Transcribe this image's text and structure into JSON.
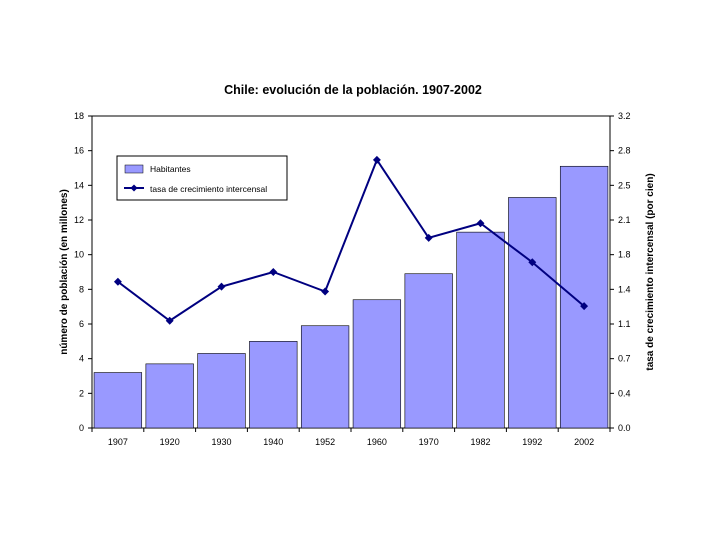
{
  "chart_data": {
    "type": "bar",
    "title": "Chile: evolución de la población. 1907-2002",
    "categories": [
      "1907",
      "1920",
      "1930",
      "1940",
      "1952",
      "1960",
      "1970",
      "1982",
      "1992",
      "2002"
    ],
    "series": [
      {
        "name": "Habitantes",
        "type": "bar",
        "axis": "left",
        "color": "#9999ff",
        "values": [
          3.2,
          3.7,
          4.3,
          5.0,
          5.9,
          7.4,
          8.9,
          11.3,
          13.3,
          15.1
        ]
      },
      {
        "name": "tasa de crecimiento intercensal",
        "type": "line",
        "axis": "right",
        "color": "#000080",
        "values": [
          1.5,
          1.1,
          1.45,
          1.6,
          1.4,
          2.75,
          1.95,
          2.1,
          1.7,
          1.25
        ]
      }
    ],
    "ylabel_left": "número de población (en millones)",
    "ylabel_right": "tasa de crecimiento intercensal (por cien)",
    "ylim_left": [
      0,
      18
    ],
    "yticks_left": [
      "0",
      "2",
      "4",
      "6",
      "8",
      "10",
      "12",
      "14",
      "16",
      "18"
    ],
    "ylim_right": [
      0,
      3.2
    ],
    "yticks_right": [
      "0.0",
      "0.4",
      "0.7",
      "1.1",
      "1.4",
      "1.8",
      "2.1",
      "2.5",
      "2.8",
      "3.2"
    ],
    "grid": false,
    "legend_position": "top-left"
  }
}
